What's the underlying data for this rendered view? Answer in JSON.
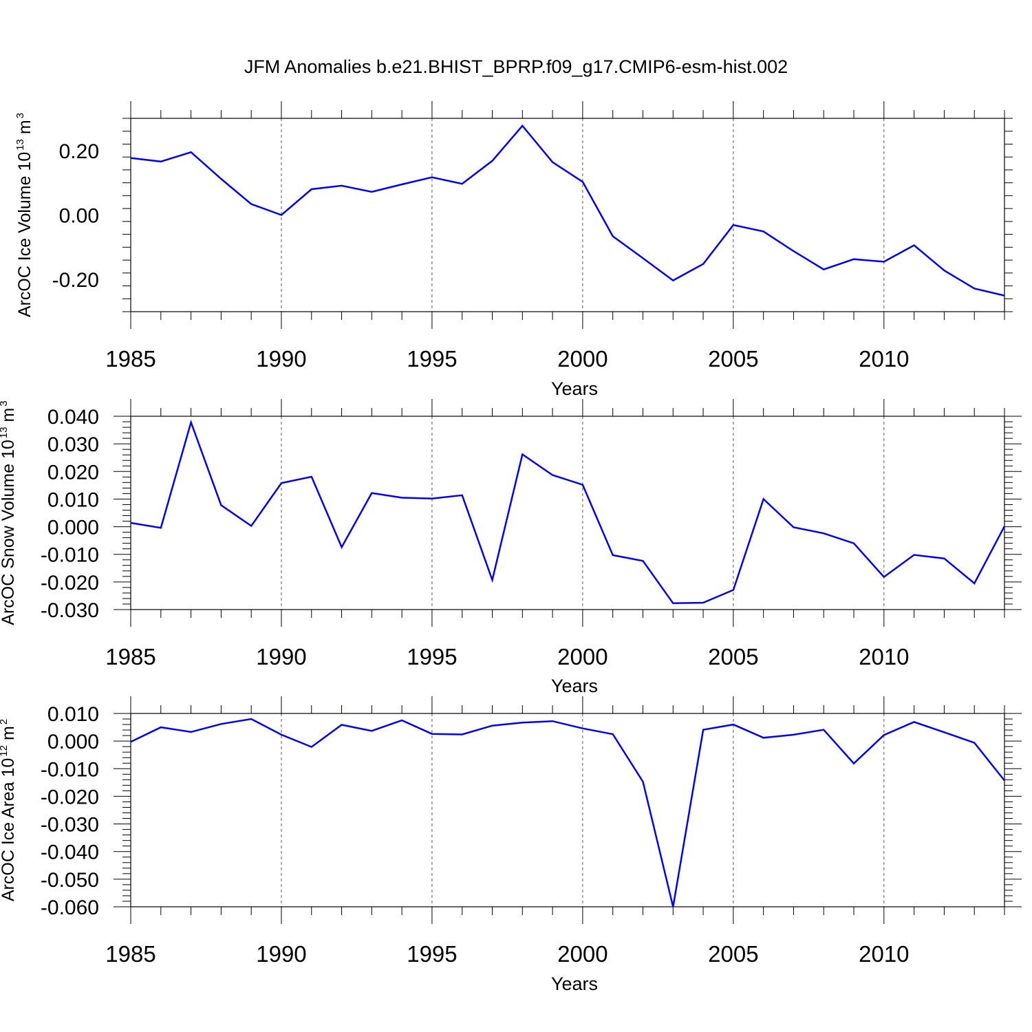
{
  "chart_data": [
    {
      "type": "line",
      "title": "JFM Anomalies b.e21.BHIST_BPRP.f09_g17.CMIP6-esm-hist.002",
      "ylabel": "ArcOC Ice Volume 10",
      "ylabel_exp": "13",
      "ylabel_unit": "m",
      "ylabel_unit_exp": "3",
      "xlabel": "Years",
      "xlim": [
        1985,
        2014
      ],
      "ylim": [
        -0.3,
        0.3
      ],
      "yticks": [
        -0.2,
        0.0,
        0.2
      ],
      "ytick_labels": [
        "-0.20",
        "0.00",
        "0.20"
      ],
      "xticks": [
        1985,
        1990,
        1995,
        2000,
        2005,
        2010
      ],
      "xtick_labels": [
        "1985",
        "1990",
        "1995",
        "2000",
        "2005",
        "2010"
      ],
      "x": [
        1985,
        1986,
        1987,
        1988,
        1989,
        1990,
        1991,
        1992,
        1993,
        1994,
        1995,
        1996,
        1997,
        1998,
        1999,
        2000,
        2001,
        2002,
        2003,
        2004,
        2005,
        2006,
        2007,
        2008,
        2009,
        2010,
        2011,
        2012,
        2013,
        2014
      ],
      "values": [
        0.177,
        0.166,
        0.195,
        0.112,
        0.034,
        0.0,
        0.08,
        0.091,
        0.072,
        0.095,
        0.117,
        0.097,
        0.168,
        0.277,
        0.164,
        0.103,
        -0.066,
        -0.134,
        -0.203,
        -0.152,
        -0.031,
        -0.051,
        -0.112,
        -0.169,
        -0.137,
        -0.145,
        -0.094,
        -0.172,
        -0.228,
        -0.25
      ],
      "color": "#0000ff"
    },
    {
      "type": "line",
      "ylabel": "ArcOC Snow Volume 10",
      "ylabel_exp": "13",
      "ylabel_unit": "m",
      "ylabel_unit_exp": "3",
      "xlabel": "Years",
      "xlim": [
        1985,
        2014
      ],
      "ylim": [
        -0.03,
        0.04
      ],
      "yticks": [
        -0.03,
        -0.02,
        -0.01,
        0.0,
        0.01,
        0.02,
        0.03,
        0.04
      ],
      "ytick_labels": [
        "-0.030",
        "-0.020",
        "-0.010",
        "0.000",
        "0.010",
        "0.020",
        "0.030",
        "0.040"
      ],
      "xticks": [
        1985,
        1990,
        1995,
        2000,
        2005,
        2010
      ],
      "xtick_labels": [
        "1985",
        "1990",
        "1995",
        "2000",
        "2005",
        "2010"
      ],
      "x": [
        1985,
        1986,
        1987,
        1988,
        1989,
        1990,
        1991,
        1992,
        1993,
        1994,
        1995,
        1996,
        1997,
        1998,
        1999,
        2000,
        2001,
        2002,
        2003,
        2004,
        2005,
        2006,
        2007,
        2008,
        2009,
        2010,
        2011,
        2012,
        2013,
        2014
      ],
      "values": [
        0.0014,
        -0.0004,
        0.0378,
        0.0078,
        0.0003,
        0.0158,
        0.0181,
        -0.0074,
        0.0122,
        0.0105,
        0.0102,
        0.0114,
        -0.0193,
        0.0262,
        0.0187,
        0.0152,
        -0.0103,
        -0.0124,
        -0.0277,
        -0.0275,
        -0.0229,
        0.01,
        -0.0002,
        -0.0024,
        -0.006,
        -0.0182,
        -0.0102,
        -0.0115,
        -0.0205,
        0.0002
      ],
      "color": "#0000ff"
    },
    {
      "type": "line",
      "ylabel": "ArcOC Ice Area 10",
      "ylabel_exp": "12",
      "ylabel_unit": "m",
      "ylabel_unit_exp": "2",
      "xlabel": "Years",
      "xlim": [
        1985,
        2014
      ],
      "ylim": [
        -0.06,
        0.01
      ],
      "yticks": [
        -0.06,
        -0.05,
        -0.04,
        -0.03,
        -0.02,
        -0.01,
        0.0,
        0.01
      ],
      "ytick_labels": [
        "-0.060",
        "-0.050",
        "-0.040",
        "-0.030",
        "-0.020",
        "-0.010",
        "0.000",
        "0.010"
      ],
      "xticks": [
        1985,
        1990,
        1995,
        2000,
        2005,
        2010
      ],
      "xtick_labels": [
        "1985",
        "1990",
        "1995",
        "2000",
        "2005",
        "2010"
      ],
      "x": [
        1985,
        1986,
        1987,
        1988,
        1989,
        1990,
        1991,
        1992,
        1993,
        1994,
        1995,
        1996,
        1997,
        1998,
        1999,
        2000,
        2001,
        2002,
        2003,
        2004,
        2005,
        2006,
        2007,
        2008,
        2009,
        2010,
        2011,
        2012,
        2013,
        2014
      ],
      "values": [
        -0.0003,
        0.005,
        0.0033,
        0.0062,
        0.008,
        0.0023,
        -0.0021,
        0.0059,
        0.0037,
        0.0075,
        0.0026,
        0.0024,
        0.0056,
        0.0067,
        0.0072,
        0.0046,
        0.0025,
        -0.0147,
        -0.06,
        0.0041,
        0.006,
        0.0012,
        0.0023,
        0.0041,
        -0.0081,
        0.0022,
        0.0069,
        0.0032,
        -0.0006,
        -0.0143
      ],
      "color": "#0000ff"
    }
  ]
}
